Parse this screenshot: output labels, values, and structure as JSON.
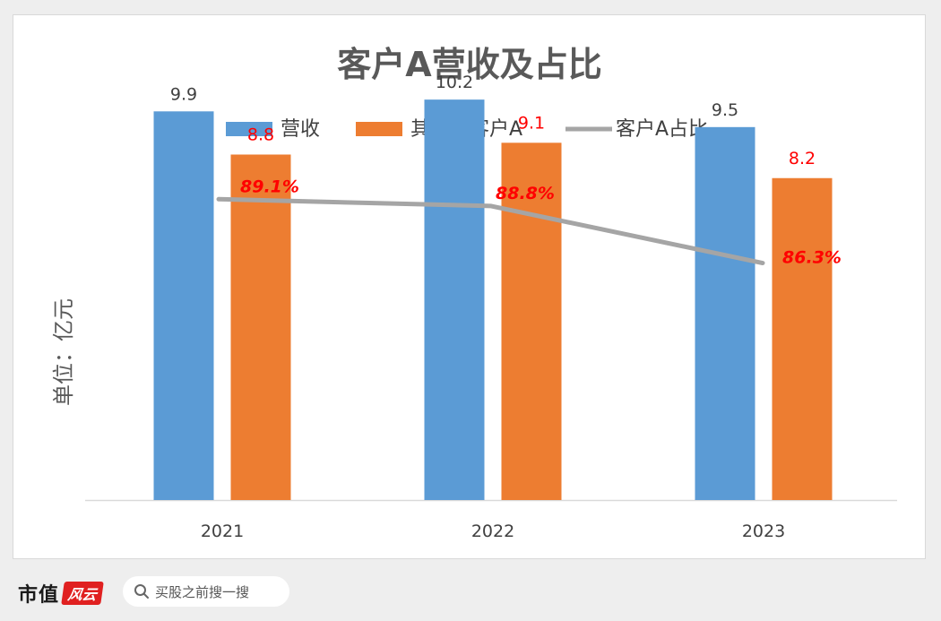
{
  "colors": {
    "revenue": "#5b9bd5",
    "client_a": "#ed7d31",
    "share_line": "#a5a5a5",
    "share_label": "#ff0000",
    "client_a_label": "#ff0000",
    "revenue_label": "#404040",
    "brand_badge": "#e02020"
  },
  "chart_data": {
    "type": "bar",
    "title": "客户A营收及占比",
    "ylabel": "单位：亿元",
    "categories": [
      "2021",
      "2022",
      "2023"
    ],
    "series": [
      {
        "name": "营收",
        "type": "bar",
        "values": [
          9.9,
          10.2,
          9.5
        ],
        "labels": [
          "9.9",
          "10.2",
          "9.5"
        ]
      },
      {
        "name": "其中：客户A",
        "type": "bar",
        "values": [
          8.8,
          9.1,
          8.2
        ],
        "labels": [
          "8.8",
          "9.1",
          "8.2"
        ]
      },
      {
        "name": "客户A占比",
        "type": "line",
        "values": [
          89.1,
          88.8,
          86.3
        ],
        "labels": [
          "89.1%",
          "88.8%",
          "86.3%"
        ],
        "unit": "%"
      }
    ],
    "ylim": [
      0,
      10.5
    ],
    "y2lim": [
      80.9,
      89.7
    ],
    "grid": false,
    "legend_position": "top"
  },
  "footer": {
    "brand_name": "市值",
    "brand_badge_text": "风云",
    "search_placeholder": "买股之前搜一搜"
  }
}
